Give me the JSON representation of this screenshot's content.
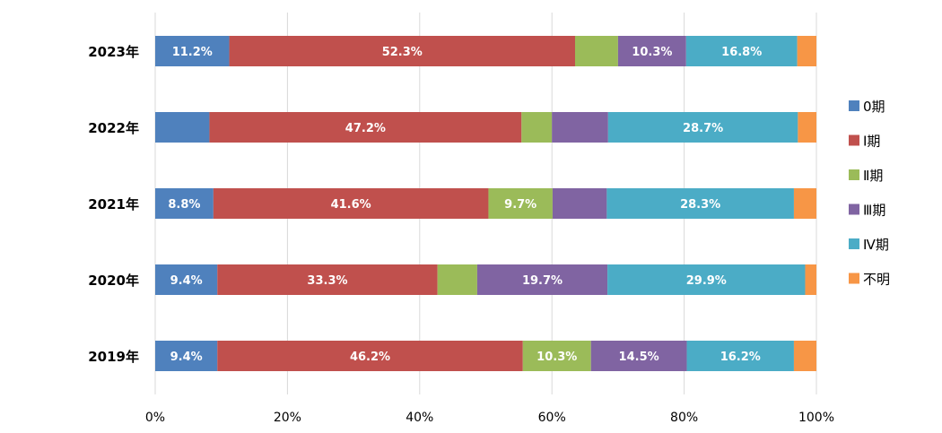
{
  "chart_data": {
    "type": "bar",
    "orientation": "horizontal",
    "stacked": true,
    "percent_stacked": true,
    "categories": [
      "2023年",
      "2022年",
      "2021年",
      "2020年",
      "2019年"
    ],
    "series": [
      {
        "name": "0期",
        "color": "#4f81bd",
        "values": [
          11.2,
          8.2,
          8.8,
          9.4,
          9.4
        ],
        "labels": [
          "11.2%",
          "",
          "8.8%",
          "9.4%",
          "9.4%"
        ]
      },
      {
        "name": "Ⅰ期",
        "color": "#c0504d",
        "values": [
          52.3,
          47.2,
          41.6,
          33.3,
          46.2
        ],
        "labels": [
          "52.3%",
          "47.2%",
          "41.6%",
          "33.3%",
          "46.2%"
        ]
      },
      {
        "name": "Ⅱ期",
        "color": "#9bbb59",
        "values": [
          6.5,
          4.6,
          9.7,
          6.0,
          10.3
        ],
        "labels": [
          "",
          "",
          "9.7%",
          "",
          "10.3%"
        ]
      },
      {
        "name": "Ⅲ期",
        "color": "#8064a2",
        "values": [
          10.3,
          8.5,
          8.2,
          19.7,
          14.5
        ],
        "labels": [
          "10.3%",
          "",
          "",
          "19.7%",
          "14.5%"
        ]
      },
      {
        "name": "Ⅳ期",
        "color": "#4bacc6",
        "values": [
          16.8,
          28.7,
          28.3,
          29.9,
          16.2
        ],
        "labels": [
          "16.8%",
          "28.7%",
          "28.3%",
          "29.9%",
          "16.2%"
        ]
      },
      {
        "name": "不明",
        "color": "#f79646",
        "values": [
          2.9,
          2.8,
          3.4,
          1.7,
          3.4
        ],
        "labels": [
          "",
          "",
          "",
          "",
          ""
        ]
      }
    ],
    "xlim": [
      0,
      100
    ],
    "x_ticks": [
      "0%",
      "20%",
      "40%",
      "60%",
      "80%",
      "100%"
    ],
    "grid": "vertical",
    "legend_position": "right"
  }
}
